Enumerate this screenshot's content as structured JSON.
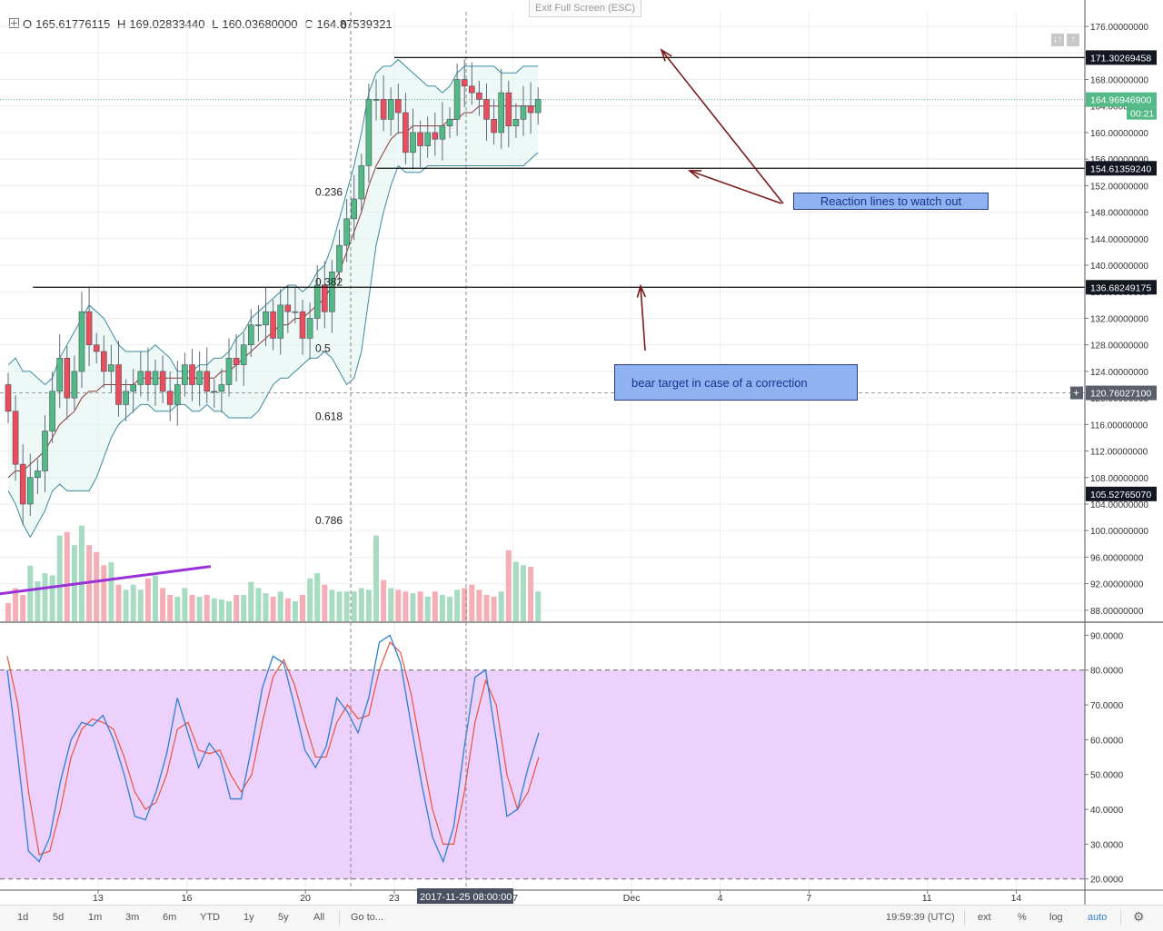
{
  "header": {
    "ohlc": [
      {
        "label": "O",
        "value": "165.61776115"
      },
      {
        "label": "H",
        "value": "169.02833440"
      },
      {
        "label": "L",
        "value": "160.03680000"
      },
      {
        "label": "C",
        "value": "164.87539321"
      }
    ],
    "exit_fullscreen": "Exit Full Screen (ESC)"
  },
  "top_icons": [
    "↓↑",
    "↑"
  ],
  "annotations": {
    "reaction": "Reaction lines to watch out",
    "bear": "bear target in case of a correction"
  },
  "toolbar": {
    "ranges": [
      "1d",
      "5d",
      "1m",
      "3m",
      "6m",
      "YTD",
      "1y",
      "5y",
      "All"
    ],
    "goto": "Go to...",
    "time": "19:59:39 (UTC)",
    "ext": "ext",
    "percent": "%",
    "log": "log",
    "auto": "auto"
  },
  "colors": {
    "up": "#53b987",
    "down": "#eb4d5c",
    "bb": "#3b8a9e",
    "ma": "#8b3a3a",
    "stoch_k": "#2f7fd3",
    "stoch_d": "#e8533a",
    "stoch_bg": "#e8c9fb",
    "arrow": "#7a1a1a",
    "trend": "#9b30d9"
  },
  "chart_data": [
    {
      "type": "candlestick",
      "y_ticks": [
        "176.00000000",
        "172.00000000",
        "168.00000000",
        "164.00000000",
        "160.00000000",
        "156.00000000",
        "152.00000000",
        "148.00000000",
        "144.00000000",
        "140.00000000",
        "136.00000000",
        "132.00000000",
        "128.00000000",
        "124.00000000",
        "120.00000000",
        "116.00000000",
        "112.00000000",
        "108.00000000",
        "104.00000000",
        "100.00000000",
        "96.00000000",
        "92.00000000",
        "88.00000000"
      ],
      "ylim": [
        86.2,
        178.2
      ],
      "x_ticks": [
        "13",
        "16",
        "20",
        "23",
        "27",
        "Dec",
        "4",
        "7",
        "11",
        "14"
      ],
      "x_tick_days": [
        13,
        16,
        20,
        23,
        27,
        31,
        34,
        37,
        41,
        44
      ],
      "crosshair_label": "2017-11-25 08:00:00",
      "price_labels": [
        {
          "value": 171.30269458,
          "text": "171.30269458",
          "style": "dark"
        },
        {
          "value": 164.969469,
          "text": "164.96946900",
          "style": "green"
        },
        {
          "value": 154.6135924,
          "text": "154.61359240",
          "style": "dark"
        },
        {
          "value": 136.68249175,
          "text": "136.68249175",
          "style": "dark"
        },
        {
          "value": 120.760271,
          "text": "120.76027100",
          "style": "grey"
        },
        {
          "value": 105.5276507,
          "text": "105.52765070",
          "style": "dark"
        }
      ],
      "countdown": "00:21",
      "horizontal_lines": [
        {
          "value": 171.30269458,
          "from_day": 23.0
        },
        {
          "value": 154.6135924,
          "from_day": 22.4
        },
        {
          "value": 136.68249175,
          "from_day": 10.8
        }
      ],
      "fib_levels": [
        {
          "label": "0",
          "value": 176.2
        },
        {
          "label": "0.236",
          "value": 151.0
        },
        {
          "label": "0.382",
          "value": 137.5
        },
        {
          "label": "0.5",
          "value": 127.5
        },
        {
          "label": "0.618",
          "value": 117.2
        },
        {
          "label": "0.786",
          "value": 101.5
        }
      ],
      "candles_open": [
        122,
        118,
        110,
        104,
        108,
        109,
        115,
        121,
        126,
        120,
        124,
        133,
        128,
        127,
        124,
        125,
        119,
        121,
        122,
        124,
        122,
        124,
        121,
        119,
        122,
        125,
        122,
        124,
        121,
        121,
        122,
        126,
        125,
        128,
        131,
        131,
        133,
        129,
        134,
        133,
        133,
        129,
        132,
        137,
        133,
        139,
        143,
        147,
        150,
        155,
        165,
        165,
        162,
        165,
        163,
        157,
        160,
        158,
        160,
        159,
        161,
        162,
        168,
        167,
        166,
        165,
        162,
        160,
        166,
        161,
        162,
        164,
        163
      ],
      "candles_close": [
        118,
        110,
        104,
        108,
        109,
        115,
        121,
        126,
        120,
        124,
        133,
        128,
        127,
        124,
        125,
        119,
        121,
        122,
        124,
        122,
        124,
        121,
        119,
        122,
        125,
        122,
        124,
        121,
        121,
        122,
        126,
        125,
        128,
        131,
        131,
        133,
        129,
        134,
        133,
        133,
        129,
        132,
        137,
        133,
        139,
        143,
        147,
        150,
        155,
        165,
        165,
        162,
        165,
        163,
        157,
        160,
        158,
        160,
        159,
        161,
        162,
        168,
        167,
        166,
        165,
        162,
        160,
        166,
        161,
        162,
        164,
        163,
        165
      ],
      "bollinger_upper": [
        125,
        126,
        124,
        124,
        123,
        122,
        123,
        126,
        128,
        130,
        132,
        134,
        133,
        132,
        130,
        128,
        127,
        127,
        127,
        127,
        128,
        127,
        126,
        124,
        124,
        124,
        125,
        125,
        126,
        126,
        127,
        129,
        130,
        132,
        133,
        134,
        135,
        136,
        137,
        137,
        136,
        137,
        139,
        140,
        143,
        147,
        151,
        155,
        160,
        166,
        169,
        170,
        170,
        171,
        170,
        169,
        168,
        167,
        167,
        166,
        167,
        169,
        170,
        170,
        170,
        170,
        170,
        169,
        169,
        169,
        170,
        170,
        170
      ],
      "bollinger_mid": [
        108,
        109,
        109,
        110,
        111,
        112,
        114,
        116,
        117,
        118,
        120,
        121,
        121,
        122,
        122,
        122,
        122,
        122,
        123,
        123,
        123,
        123,
        123,
        123,
        123,
        123,
        123,
        123,
        123,
        124,
        124,
        125,
        126,
        127,
        128,
        129,
        130,
        131,
        131,
        132,
        132,
        133,
        134,
        135,
        137,
        139,
        142,
        145,
        148,
        152,
        155,
        157,
        159,
        160,
        160,
        161,
        161,
        161,
        161,
        161,
        162,
        162,
        163,
        163,
        164,
        164,
        164,
        164,
        164,
        164,
        164,
        164,
        164
      ],
      "bollinger_lower": [
        106,
        104,
        101,
        99,
        101,
        103,
        106,
        107,
        106,
        106,
        106,
        106,
        108,
        111,
        114,
        116,
        117,
        118,
        119,
        119,
        118,
        118,
        118,
        119,
        119,
        118,
        118,
        119,
        118,
        118,
        117,
        117,
        117,
        117,
        118,
        120,
        122,
        123,
        123,
        124,
        125,
        126,
        126,
        127,
        126,
        124,
        122,
        123,
        127,
        135,
        143,
        148,
        152,
        155,
        154,
        154,
        154,
        155,
        155,
        155,
        155,
        155,
        155,
        155,
        155,
        155,
        155,
        155,
        155,
        155,
        155,
        156,
        157
      ],
      "volume": [
        3.2,
        5.8,
        4.6,
        9.7,
        7.0,
        8.4,
        8.0,
        15.0,
        15.6,
        13.3,
        16.7,
        13.3,
        12.1,
        9.8,
        10.3,
        6.4,
        5.5,
        6.4,
        5.5,
        7.5,
        8.0,
        5.8,
        4.6,
        4.3,
        5.8,
        4.6,
        4.3,
        4.6,
        4.0,
        3.8,
        3.5,
        4.6,
        4.6,
        6.9,
        5.8,
        4.9,
        4.3,
        5.2,
        4.0,
        3.5,
        4.6,
        7.5,
        8.4,
        6.4,
        5.5,
        5.2,
        5.2,
        5.2,
        5.8,
        5.5,
        15.0,
        7.2,
        5.8,
        5.5,
        5.2,
        4.9,
        5.2,
        4.3,
        5.2,
        4.6,
        4.3,
        5.5,
        5.8,
        6.4,
        5.5,
        4.6,
        4.3,
        5.2,
        12.4,
        10.4,
        9.8,
        9.5,
        5.2
      ],
      "trend_line": [
        {
          "day": 8.0,
          "value": 89.5
        },
        {
          "day": 16.8,
          "value": 94.6
        }
      ]
    },
    {
      "type": "line",
      "name": "stochastic",
      "y_ticks": [
        "90.0000",
        "80.0000",
        "70.0000",
        "60.0000",
        "50.0000",
        "40.0000",
        "30.0000",
        "20.0000"
      ],
      "ylim": [
        16.8,
        93.5
      ],
      "band": [
        20,
        80
      ],
      "k": [
        80,
        55,
        28,
        25,
        32,
        48,
        60,
        65,
        64,
        67,
        60,
        50,
        38,
        37,
        45,
        56,
        72,
        62,
        52,
        59,
        55,
        43,
        43,
        58,
        75,
        84,
        82,
        70,
        57,
        52,
        58,
        72,
        68,
        62,
        72,
        88,
        90,
        82,
        64,
        47,
        32,
        25,
        35,
        58,
        78,
        80,
        60,
        38,
        40,
        52,
        62
      ],
      "d": [
        84,
        70,
        45,
        27,
        28,
        40,
        55,
        63,
        66,
        65,
        63,
        55,
        45,
        40,
        42,
        50,
        63,
        65,
        57,
        56,
        57,
        50,
        45,
        50,
        65,
        78,
        83,
        76,
        65,
        55,
        55,
        65,
        70,
        66,
        67,
        80,
        88,
        85,
        73,
        56,
        40,
        30,
        30,
        45,
        65,
        77,
        70,
        50,
        40,
        45,
        55
      ]
    }
  ]
}
